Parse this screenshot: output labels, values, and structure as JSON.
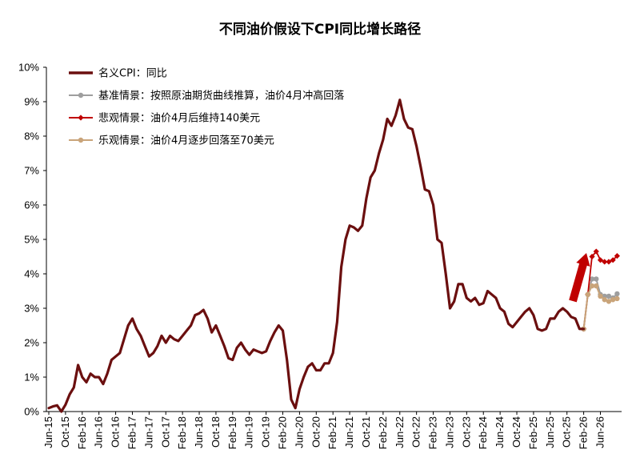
{
  "chart_data": {
    "type": "line",
    "title": "不同油价假设下CPI同比增长路径",
    "xlabel": "",
    "ylabel": "",
    "ylim": [
      0,
      10
    ],
    "y_ticks": [
      "0%",
      "1%",
      "2%",
      "3%",
      "4%",
      "5%",
      "6%",
      "7%",
      "8%",
      "9%",
      "10%"
    ],
    "x_tick_labels": [
      "Jun-15",
      "Oct-15",
      "Feb-16",
      "Jun-16",
      "Oct-16",
      "Feb-17",
      "Jun-17",
      "Oct-17",
      "Feb-18",
      "Jun-18",
      "Oct-18",
      "Feb-19",
      "Jun-19",
      "Oct-19",
      "Feb-20",
      "Jun-20",
      "Oct-20",
      "Feb-21",
      "Jun-21",
      "Oct-21",
      "Feb-22",
      "Jun-22",
      "Oct-22",
      "Feb-23",
      "Jun-23",
      "Oct-23",
      "Feb-24",
      "Jun-24",
      "Oct-24",
      "Feb-25",
      "Jun-25",
      "Oct-25",
      "Feb-26",
      "Jun-26"
    ],
    "x_start": "2015-06",
    "legend_position": "top-left",
    "colors": {
      "headline": "#6b0f0f",
      "baseline": "#9e9e9e",
      "pessimistic": "#c00000",
      "optimistic": "#c9a47a",
      "arrow": "#c00000",
      "axis": "#000000"
    },
    "series": [
      {
        "name": "名义CPI：同比",
        "key": "headline",
        "x": [
          "2015-06",
          "2015-07",
          "2015-08",
          "2015-09",
          "2015-10",
          "2015-11",
          "2015-12",
          "2016-01",
          "2016-02",
          "2016-03",
          "2016-04",
          "2016-05",
          "2016-06",
          "2016-07",
          "2016-08",
          "2016-09",
          "2016-10",
          "2016-11",
          "2016-12",
          "2017-01",
          "2017-02",
          "2017-03",
          "2017-04",
          "2017-05",
          "2017-06",
          "2017-07",
          "2017-08",
          "2017-09",
          "2017-10",
          "2017-11",
          "2017-12",
          "2018-01",
          "2018-02",
          "2018-03",
          "2018-04",
          "2018-05",
          "2018-06",
          "2018-07",
          "2018-08",
          "2018-09",
          "2018-10",
          "2018-11",
          "2018-12",
          "2019-01",
          "2019-02",
          "2019-03",
          "2019-04",
          "2019-05",
          "2019-06",
          "2019-07",
          "2019-08",
          "2019-09",
          "2019-10",
          "2019-11",
          "2019-12",
          "2020-01",
          "2020-02",
          "2020-03",
          "2020-04",
          "2020-05",
          "2020-06",
          "2020-07",
          "2020-08",
          "2020-09",
          "2020-10",
          "2020-11",
          "2020-12",
          "2021-01",
          "2021-02",
          "2021-03",
          "2021-04",
          "2021-05",
          "2021-06",
          "2021-07",
          "2021-08",
          "2021-09",
          "2021-10",
          "2021-11",
          "2021-12",
          "2022-01",
          "2022-02",
          "2022-03",
          "2022-04",
          "2022-05",
          "2022-06",
          "2022-07",
          "2022-08",
          "2022-09",
          "2022-10",
          "2022-11",
          "2022-12",
          "2023-01",
          "2023-02",
          "2023-03",
          "2023-04",
          "2023-05",
          "2023-06",
          "2023-07",
          "2023-08",
          "2023-09",
          "2023-10",
          "2023-11",
          "2023-12",
          "2024-01",
          "2024-02",
          "2024-03",
          "2024-04",
          "2024-05",
          "2024-06",
          "2024-07",
          "2024-08",
          "2024-09",
          "2024-10",
          "2024-11",
          "2024-12",
          "2025-01",
          "2025-02",
          "2025-03",
          "2025-04",
          "2025-05",
          "2025-06",
          "2025-07",
          "2025-08",
          "2025-09",
          "2025-10",
          "2025-11",
          "2025-12",
          "2026-01",
          "2026-02"
        ],
        "values": [
          0.1,
          0.15,
          0.18,
          0.0,
          0.2,
          0.5,
          0.7,
          1.35,
          1.0,
          0.85,
          1.1,
          1.0,
          1.0,
          0.8,
          1.1,
          1.5,
          1.6,
          1.7,
          2.1,
          2.5,
          2.7,
          2.4,
          2.2,
          1.9,
          1.6,
          1.7,
          1.9,
          2.2,
          2.0,
          2.2,
          2.1,
          2.05,
          2.2,
          2.35,
          2.5,
          2.8,
          2.85,
          2.95,
          2.7,
          2.3,
          2.5,
          2.2,
          1.9,
          1.55,
          1.5,
          1.85,
          2.0,
          1.8,
          1.65,
          1.8,
          1.75,
          1.7,
          1.75,
          2.05,
          2.3,
          2.5,
          2.35,
          1.5,
          0.35,
          0.1,
          0.65,
          1.0,
          1.3,
          1.4,
          1.2,
          1.2,
          1.4,
          1.4,
          1.7,
          2.6,
          4.2,
          5.0,
          5.4,
          5.35,
          5.25,
          5.4,
          6.2,
          6.8,
          7.0,
          7.5,
          7.9,
          8.5,
          8.3,
          8.6,
          9.05,
          8.5,
          8.25,
          8.2,
          7.7,
          7.1,
          6.45,
          6.4,
          6.0,
          5.0,
          4.9,
          4.0,
          3.0,
          3.2,
          3.7,
          3.7,
          3.3,
          3.2,
          3.3,
          3.1,
          3.15,
          3.5,
          3.4,
          3.3,
          3.0,
          2.9,
          2.55,
          2.45,
          2.6,
          2.75,
          2.9,
          3.0,
          2.8,
          2.4,
          2.35,
          2.4,
          2.7,
          2.7,
          2.9,
          3.0,
          2.9,
          2.75,
          2.7,
          2.4,
          2.4
        ]
      },
      {
        "name": "基准情景：按照原油期货曲线推算，油价4月冲高回落",
        "key": "baseline",
        "x": [
          "2026-02",
          "2026-03",
          "2026-04",
          "2026-05",
          "2026-06",
          "2026-07",
          "2026-08",
          "2026-09",
          "2026-10"
        ],
        "values": [
          2.4,
          3.4,
          3.85,
          3.85,
          3.4,
          3.35,
          3.35,
          3.3,
          3.42
        ]
      },
      {
        "name": "悲观情景：油价4月后维持140美元",
        "key": "pessimistic",
        "x": [
          "2026-02",
          "2026-03",
          "2026-04",
          "2026-05",
          "2026-06",
          "2026-07",
          "2026-08",
          "2026-09",
          "2026-10"
        ],
        "values": [
          2.4,
          3.4,
          4.5,
          4.65,
          4.4,
          4.35,
          4.35,
          4.4,
          4.52
        ]
      },
      {
        "name": "乐观情景：油价4月逐步回落至70美元",
        "key": "optimistic",
        "x": [
          "2026-02",
          "2026-03",
          "2026-04",
          "2026-05",
          "2026-06",
          "2026-07",
          "2026-08",
          "2026-09",
          "2026-10"
        ],
        "values": [
          2.4,
          3.4,
          3.65,
          3.65,
          3.35,
          3.25,
          3.2,
          3.25,
          3.28
        ]
      }
    ]
  }
}
